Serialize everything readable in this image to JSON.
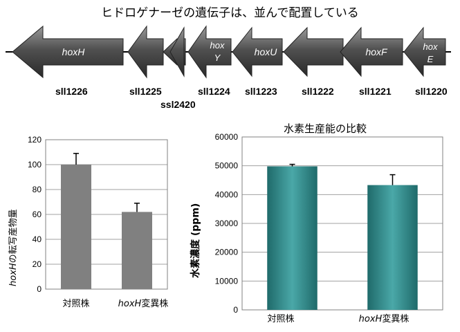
{
  "header": {
    "title": "ヒドロゲナーゼの遺伝子は、並んで配置している"
  },
  "colors": {
    "arrow_fill_top": "#c8c8c8",
    "arrow_fill_dark": "#3a3a3a",
    "bar_gray": "#808080",
    "bar_teal": "#3f9595",
    "grid": "#a0a0a0"
  },
  "gene_cluster": {
    "arrows": [
      {
        "name": "hoxH",
        "inner_label": "hoxH"
      },
      {
        "name": "sll1225",
        "inner_label": ""
      },
      {
        "name": "ssl2420",
        "inner_label": ""
      },
      {
        "name": "hoxY",
        "inner_label_1": "hox",
        "inner_label_2": "Y"
      },
      {
        "name": "hoxU",
        "inner_label": "hoxU"
      },
      {
        "name": "sll1222",
        "inner_label": ""
      },
      {
        "name": "hoxF",
        "inner_label": "hoxF"
      },
      {
        "name": "hoxE",
        "inner_label_1": "hox",
        "inner_label_2": "E"
      }
    ],
    "locus_labels": [
      "sll1226",
      "sll1225",
      "ssl2420",
      "sll1224",
      "sll1223",
      "sll1222",
      "sll1221",
      "sll1220"
    ]
  },
  "chart_data": [
    {
      "type": "bar",
      "title": "",
      "ylabel_italic": "hoxH",
      "ylabel_rest": "の転写産物量",
      "categories": [
        "対照株",
        "hoxH変異株"
      ],
      "category_parts": [
        {
          "italic": "",
          "rest": "対照株"
        },
        {
          "italic": "hoxH",
          "rest": "変異株"
        }
      ],
      "values": [
        100,
        62
      ],
      "errors": [
        9,
        7
      ],
      "ylim": [
        0,
        120
      ],
      "yticks": [
        "0",
        "20",
        "40",
        "60",
        "80",
        "100",
        "120"
      ],
      "grid": true,
      "bar_color": "#808080"
    },
    {
      "type": "bar",
      "title": "水素生産能の比較",
      "ylabel": "水素濃度 (ppm)",
      "categories": [
        "対照株",
        "hoxH変異株"
      ],
      "category_parts": [
        {
          "italic": "",
          "rest": "対照株"
        },
        {
          "italic": "hoxH",
          "rest": "変異株"
        }
      ],
      "values": [
        49800,
        43300
      ],
      "errors": [
        700,
        3600
      ],
      "ylim": [
        0,
        60000
      ],
      "yticks": [
        "0",
        "10000",
        "20000",
        "30000",
        "40000",
        "50000",
        "60000"
      ],
      "grid": true,
      "bar_color": "#3f9595"
    }
  ]
}
